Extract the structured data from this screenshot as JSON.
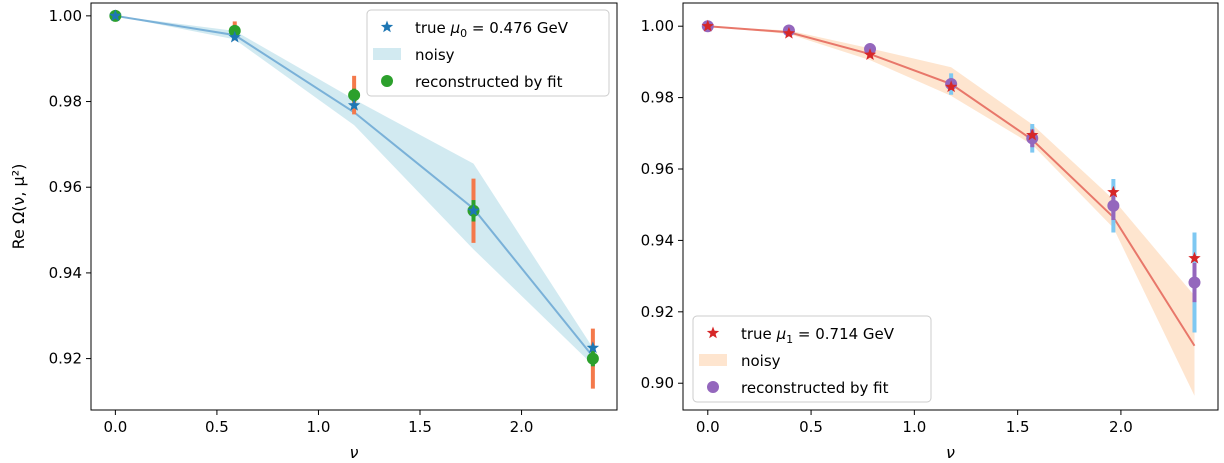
{
  "chart_data": [
    {
      "type": "line",
      "xlabel": "ν",
      "ylabel": "Re Ω(ν, μ²)",
      "xlim": [
        -0.12,
        2.47
      ],
      "ylim": [
        0.908,
        1.003
      ],
      "xticks": [
        0.0,
        0.5,
        1.0,
        1.5,
        2.0
      ],
      "xtick_labels": [
        "0.0",
        "0.5",
        "1.0",
        "1.5",
        "2.0"
      ],
      "yticks": [
        0.92,
        0.94,
        0.96,
        0.98,
        1.0
      ],
      "ytick_labels": [
        "0.92",
        "0.94",
        "0.96",
        "0.98",
        "1.00"
      ],
      "grid": false,
      "legend_position": "top-right",
      "legend": {
        "true_label_prefix": "true ",
        "true_label_mu": "μ",
        "true_label_sub": "0",
        "true_label_value": " = 0.476 GeV",
        "noisy_label": "noisy",
        "fit_label": "reconstructed by fit"
      },
      "colors": {
        "line": "#7ab1d8",
        "band": "#add8e6",
        "true": "#1f77b4",
        "fit": "#2ca02c",
        "error": "#f4794b",
        "noisy_err": "#f4794b"
      },
      "x": [
        0.0,
        0.5878,
        1.1756,
        1.7634,
        2.3512
      ],
      "line": [
        1.0,
        0.9955,
        0.9775,
        0.955,
        0.9205
      ],
      "band_lower": [
        1.0,
        0.9945,
        0.9745,
        0.9455,
        0.9185
      ],
      "band_upper": [
        1.0,
        0.9965,
        0.9805,
        0.9655,
        0.9225
      ],
      "true_values": [
        1.0,
        0.995,
        0.9791,
        0.9545,
        0.9225
      ],
      "noisy_values": [
        1.0,
        0.9961,
        0.9801,
        0.9525,
        0.92
      ],
      "noisy_errors": [
        0.0,
        0.0022,
        0.0045,
        0.0075,
        0.007
      ],
      "fit_values": [
        1.0,
        0.9965,
        0.9815,
        0.9545,
        0.92
      ],
      "fit_errors": [
        0.0,
        0.0008,
        0.0015,
        0.0025,
        0.0018
      ]
    },
    {
      "type": "line",
      "xlabel": "ν",
      "ylabel": "",
      "xlim": [
        -0.12,
        2.47
      ],
      "ylim": [
        0.8925,
        1.0065
      ],
      "xticks": [
        0.0,
        0.5,
        1.0,
        1.5,
        2.0
      ],
      "xtick_labels": [
        "0.0",
        "0.5",
        "1.0",
        "1.5",
        "2.0"
      ],
      "yticks": [
        0.9,
        0.92,
        0.94,
        0.96,
        0.98,
        1.0
      ],
      "ytick_labels": [
        "0.90",
        "0.92",
        "0.94",
        "0.96",
        "0.98",
        "1.00"
      ],
      "grid": false,
      "legend_position": "bottom-left",
      "legend": {
        "true_label_prefix": "true ",
        "true_label_mu": "μ",
        "true_label_sub": "1",
        "true_label_value": " = 0.714 GeV",
        "noisy_label": "noisy",
        "fit_label": "reconstructed by fit"
      },
      "colors": {
        "line": "#e8776a",
        "band": "#fdd0a8",
        "true": "#d62728",
        "fit": "#9467bd",
        "error": "#7ec8f2",
        "noisy_err": "#9467bd"
      },
      "x": [
        0.0,
        0.3927,
        0.7854,
        1.1781,
        1.5708,
        1.9635,
        2.3562
      ],
      "line": [
        1.0,
        0.9983,
        0.9922,
        0.9838,
        0.9682,
        0.9465,
        0.9105
      ],
      "band_lower": [
        1.0,
        0.9978,
        0.9905,
        0.9805,
        0.9668,
        0.9435,
        0.8965
      ],
      "band_upper": [
        1.0,
        0.9988,
        0.9938,
        0.9885,
        0.9725,
        0.9515,
        0.9245
      ],
      "true_values": [
        1.0,
        0.998,
        0.992,
        0.983,
        0.9695,
        0.9535,
        0.935
      ],
      "noisy_values": [
        1.0,
        0.9988,
        0.9936,
        0.9838,
        0.9686,
        0.9497,
        0.9282
      ],
      "noisy_errors": [
        0.0,
        0.0005,
        0.001,
        0.0015,
        0.0025,
        0.004,
        0.0055
      ],
      "fit_values": [
        1.0,
        0.9988,
        0.9936,
        0.9838,
        0.9686,
        0.9497,
        0.9282
      ],
      "fit_errors": [
        0.0,
        0.0008,
        0.0015,
        0.003,
        0.004,
        0.0075,
        0.014
      ]
    }
  ]
}
